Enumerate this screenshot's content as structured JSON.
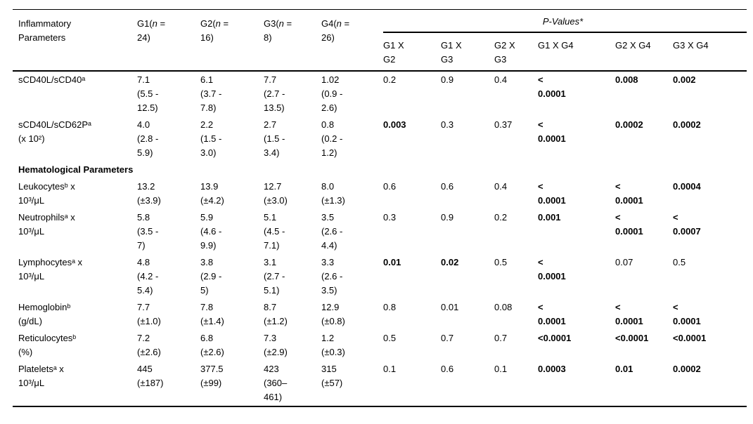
{
  "colors": {
    "text": "#000000",
    "background": "#ffffff",
    "rule": "#000000"
  },
  "table": {
    "header": {
      "param_label": "Inflammatory\nParameters",
      "pvalues_label": "P-Values*",
      "groups": [
        {
          "pre": "G1(",
          "n": "n",
          "post": " =",
          "line2": "24)"
        },
        {
          "pre": "G2(",
          "n": "n",
          "post": " =",
          "line2": "16)"
        },
        {
          "pre": "G3(",
          "n": "n",
          "post": " =",
          "line2": "8)"
        },
        {
          "pre": "G4(",
          "n": "n",
          "post": " =",
          "line2": "26)"
        }
      ],
      "p_cols": [
        "G1 X\nG2",
        "G1 X\nG3",
        "G2 X\nG3",
        "G1 X G4",
        "G2 X G4",
        "G3 X G4"
      ]
    },
    "rows": [
      {
        "type": "data",
        "param": "sCD40L/sCD40ᵃ",
        "g1": "7.1\n(5.5 -\n12.5)",
        "g2": "6.1\n(3.7 -\n7.8)",
        "g3": "7.7\n(2.7 -\n13.5)",
        "g4": "1.02\n(0.9 -\n2.6)",
        "p": [
          "0.2",
          "0.9",
          "0.4",
          "<\n0.0001",
          "0.008",
          "0.002"
        ],
        "p_bold": [
          false,
          false,
          false,
          true,
          true,
          true
        ]
      },
      {
        "type": "data",
        "param": "sCD40L/sCD62Pᵃ\n(x 10²)",
        "g1": "4.0\n(2.8 -\n5.9)",
        "g2": "2.2\n(1.5 -\n3.0)",
        "g3": "2.7\n(1.5 -\n3.4)",
        "g4": "0.8\n(0.2 -\n1.2)",
        "p": [
          "0.003",
          "0.3",
          "0.37",
          "<\n0.0001",
          "0.0002",
          "0.0002"
        ],
        "p_bold": [
          true,
          false,
          false,
          true,
          true,
          true
        ]
      },
      {
        "type": "section",
        "label": "Hematological Parameters"
      },
      {
        "type": "data",
        "param": "Leukocytesᵇ x\n10³/μL",
        "g1": "13.2\n(±3.9)",
        "g2": "13.9\n(±4.2)",
        "g3": "12.7\n(±3.0)",
        "g4": "8.0\n(±1.3)",
        "p": [
          "0.6",
          "0.6",
          "0.4",
          "<\n0.0001",
          "<\n0.0001",
          "0.0004"
        ],
        "p_bold": [
          false,
          false,
          false,
          true,
          true,
          true
        ]
      },
      {
        "type": "data",
        "param": "Neutrophilsᵃ x\n10³/μL",
        "g1": "5.8\n(3.5 -\n7)",
        "g2": "5.9\n(4.6 -\n9.9)",
        "g3": "5.1\n(4.5 -\n7.1)",
        "g4": "3.5\n(2.6 -\n4.4)",
        "p": [
          "0.3",
          "0.9",
          "0.2",
          "0.001",
          "<\n0.0001",
          "<\n0.0007"
        ],
        "p_bold": [
          false,
          false,
          false,
          true,
          true,
          true
        ]
      },
      {
        "type": "data",
        "param": "Lymphocytesᵃ x\n10³/μL",
        "g1": "4.8\n(4.2 -\n5.4)",
        "g2": "3.8\n(2.9 -\n5)",
        "g3": "3.1\n(2.7 -\n5.1)",
        "g4": "3.3\n(2.6 -\n3.5)",
        "p": [
          "0.01",
          "0.02",
          "0.5",
          "<\n0.0001",
          "0.07",
          "0.5"
        ],
        "p_bold": [
          true,
          true,
          false,
          true,
          false,
          false
        ]
      },
      {
        "type": "data",
        "param": "Hemoglobinᵇ\n(g/dL)",
        "g1": "7.7\n(±1.0)",
        "g2": "7.8\n(±1.4)",
        "g3": "8.7\n(±1.2)",
        "g4": "12.9\n(±0.8)",
        "p": [
          "0.8",
          "0.01",
          "0.08",
          "<\n0.0001",
          "<\n0.0001",
          "<\n0.0001"
        ],
        "p_bold": [
          false,
          false,
          false,
          true,
          true,
          true
        ]
      },
      {
        "type": "data",
        "param": "Reticulocytesᵇ\n(%)",
        "g1": "7.2\n(±2.6)",
        "g2": "6.8\n(±2.6)",
        "g3": "7.3\n(±2.9)",
        "g4": "1.2\n(±0.3)",
        "p": [
          "0.5",
          "0.7",
          "0.7",
          "<0.0001",
          "<0.0001",
          "<0.0001"
        ],
        "p_bold": [
          false,
          false,
          false,
          true,
          true,
          true
        ]
      },
      {
        "type": "data",
        "param": "Plateletsᵃ x\n10³/μL",
        "g1": "445\n(±187)",
        "g2": "377.5\n(±99)",
        "g3": "423\n(360–\n461)",
        "g4": "315\n(±57)",
        "p": [
          "0.1",
          "0.6",
          "0.1",
          "0.0003",
          "0.01",
          "0.0002"
        ],
        "p_bold": [
          false,
          false,
          false,
          true,
          true,
          true
        ]
      }
    ]
  }
}
